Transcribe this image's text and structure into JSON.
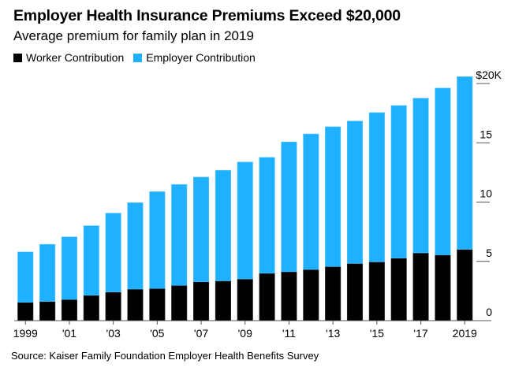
{
  "colors": {
    "worker": "#000000",
    "employer": "#1fb0ff",
    "axis": "#555555"
  },
  "chart_data": {
    "type": "bar",
    "stacked": true,
    "title": "Employer Health Insurance Premiums Exceed $20,000",
    "subtitle": "Average premium for family plan in 2019",
    "xlabel": "",
    "ylabel": "",
    "ylim": [
      0,
      20000
    ],
    "yticks": [
      0,
      5000,
      10000,
      15000,
      20000
    ],
    "ytick_labels": [
      "0",
      "5",
      "10",
      "15",
      "$20K"
    ],
    "y_axis_position": "right",
    "grid": false,
    "legend_position": "top-left",
    "categories": [
      "1999",
      "2000",
      "2001",
      "2002",
      "2003",
      "2004",
      "2005",
      "2006",
      "2007",
      "2008",
      "2009",
      "2010",
      "2011",
      "2012",
      "2013",
      "2014",
      "2015",
      "2016",
      "2017",
      "2018",
      "2019"
    ],
    "xtick_labels": [
      {
        "index": 0,
        "label": "1999"
      },
      {
        "index": 2,
        "label": "'01"
      },
      {
        "index": 4,
        "label": "'03"
      },
      {
        "index": 6,
        "label": "'05"
      },
      {
        "index": 8,
        "label": "'07"
      },
      {
        "index": 10,
        "label": "'09"
      },
      {
        "index": 12,
        "label": "'11"
      },
      {
        "index": 14,
        "label": "'13"
      },
      {
        "index": 16,
        "label": "'15"
      },
      {
        "index": 18,
        "label": "'17"
      },
      {
        "index": 20,
        "label": "2019"
      }
    ],
    "series": [
      {
        "name": "Worker Contribution",
        "color": "#000000",
        "values": [
          1543,
          1619,
          1787,
          2137,
          2412,
          2661,
          2713,
          2973,
          3281,
          3354,
          3515,
          3997,
          4129,
          4316,
          4565,
          4823,
          4955,
          5277,
          5714,
          5547,
          6015
        ]
      },
      {
        "name": "Employer Contribution",
        "color": "#1fb0ff",
        "values": [
          4248,
          4819,
          5274,
          5866,
          6656,
          7289,
          8167,
          8508,
          8824,
          9325,
          9860,
          9773,
          10944,
          11429,
          11786,
          12011,
          12591,
          12865,
          13049,
          14069,
          14561
        ]
      }
    ],
    "source": "Source: Kaiser Family Foundation Employer Health Benefits Survey"
  }
}
